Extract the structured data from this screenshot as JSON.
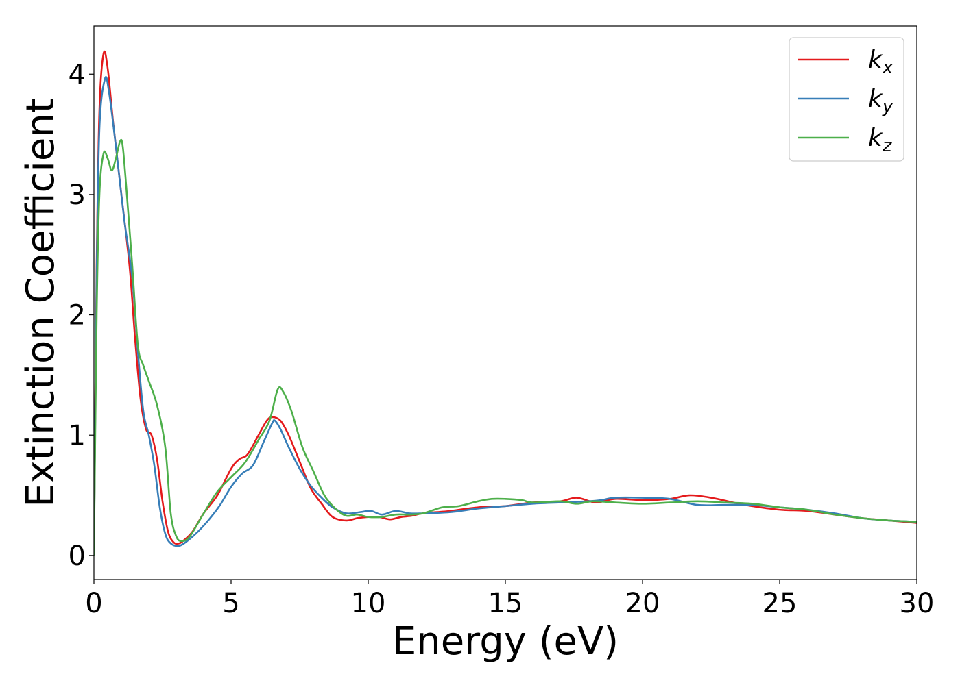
{
  "chart_data": {
    "type": "line",
    "xlabel": "Energy (eV)",
    "ylabel": "Extinction Coefficient",
    "xlim": [
      0,
      30
    ],
    "ylim": [
      -0.2,
      4.4
    ],
    "xticks": [
      0,
      5,
      10,
      15,
      20,
      25,
      30
    ],
    "xtick_labels": [
      "0",
      "5",
      "10",
      "15",
      "20",
      "25",
      "30"
    ],
    "yticks": [
      0,
      1,
      2,
      3,
      4
    ],
    "ytick_labels": [
      "0",
      "1",
      "2",
      "3",
      "4"
    ],
    "grid": false,
    "legend_position": "top-right",
    "series": [
      {
        "name": "k_x",
        "label_base": "k",
        "label_sub": "x",
        "color": "#e41a1c",
        "points": [
          [
            0,
            0
          ],
          [
            0.1,
            2.4
          ],
          [
            0.2,
            3.7
          ],
          [
            0.35,
            4.17
          ],
          [
            0.5,
            4.05
          ],
          [
            0.7,
            3.6
          ],
          [
            1.0,
            3.0
          ],
          [
            1.3,
            2.4
          ],
          [
            1.5,
            1.8
          ],
          [
            1.7,
            1.3
          ],
          [
            1.9,
            1.05
          ],
          [
            2.1,
            1.0
          ],
          [
            2.3,
            0.8
          ],
          [
            2.5,
            0.45
          ],
          [
            2.7,
            0.2
          ],
          [
            2.9,
            0.11
          ],
          [
            3.1,
            0.1
          ],
          [
            3.3,
            0.13
          ],
          [
            3.6,
            0.2
          ],
          [
            4.0,
            0.35
          ],
          [
            4.5,
            0.5
          ],
          [
            5.0,
            0.72
          ],
          [
            5.3,
            0.8
          ],
          [
            5.6,
            0.84
          ],
          [
            6.0,
            1.0
          ],
          [
            6.3,
            1.12
          ],
          [
            6.5,
            1.15
          ],
          [
            6.8,
            1.12
          ],
          [
            7.1,
            1.0
          ],
          [
            7.5,
            0.78
          ],
          [
            7.9,
            0.56
          ],
          [
            8.3,
            0.43
          ],
          [
            8.7,
            0.32
          ],
          [
            9.2,
            0.29
          ],
          [
            9.6,
            0.31
          ],
          [
            10.0,
            0.32
          ],
          [
            10.4,
            0.32
          ],
          [
            10.8,
            0.3
          ],
          [
            11.2,
            0.32
          ],
          [
            11.6,
            0.33
          ],
          [
            12.0,
            0.35
          ],
          [
            13.0,
            0.37
          ],
          [
            14.0,
            0.4
          ],
          [
            15.0,
            0.41
          ],
          [
            16.0,
            0.44
          ],
          [
            17.0,
            0.45
          ],
          [
            17.6,
            0.48
          ],
          [
            18.3,
            0.44
          ],
          [
            19.0,
            0.47
          ],
          [
            20.0,
            0.46
          ],
          [
            21.0,
            0.47
          ],
          [
            21.7,
            0.5
          ],
          [
            22.5,
            0.48
          ],
          [
            23.5,
            0.43
          ],
          [
            24.0,
            0.41
          ],
          [
            25.0,
            0.38
          ],
          [
            26.0,
            0.37
          ],
          [
            27.0,
            0.34
          ],
          [
            28.0,
            0.31
          ],
          [
            29.0,
            0.29
          ],
          [
            30.0,
            0.27
          ]
        ]
      },
      {
        "name": "k_y",
        "label_base": "k",
        "label_sub": "y",
        "color": "#377eb8",
        "points": [
          [
            0,
            0
          ],
          [
            0.1,
            2.3
          ],
          [
            0.2,
            3.55
          ],
          [
            0.4,
            3.96
          ],
          [
            0.55,
            3.85
          ],
          [
            0.8,
            3.4
          ],
          [
            1.1,
            2.8
          ],
          [
            1.4,
            2.3
          ],
          [
            1.6,
            1.7
          ],
          [
            1.8,
            1.2
          ],
          [
            2.0,
            1.0
          ],
          [
            2.2,
            0.75
          ],
          [
            2.4,
            0.4
          ],
          [
            2.6,
            0.18
          ],
          [
            2.8,
            0.1
          ],
          [
            3.1,
            0.08
          ],
          [
            3.4,
            0.12
          ],
          [
            3.8,
            0.2
          ],
          [
            4.2,
            0.3
          ],
          [
            4.6,
            0.42
          ],
          [
            5.0,
            0.57
          ],
          [
            5.4,
            0.68
          ],
          [
            5.8,
            0.75
          ],
          [
            6.2,
            0.95
          ],
          [
            6.5,
            1.1
          ],
          [
            6.6,
            1.12
          ],
          [
            6.8,
            1.05
          ],
          [
            7.1,
            0.9
          ],
          [
            7.5,
            0.72
          ],
          [
            7.9,
            0.58
          ],
          [
            8.3,
            0.48
          ],
          [
            8.7,
            0.4
          ],
          [
            9.2,
            0.35
          ],
          [
            9.7,
            0.36
          ],
          [
            10.1,
            0.37
          ],
          [
            10.5,
            0.34
          ],
          [
            11.0,
            0.37
          ],
          [
            11.5,
            0.35
          ],
          [
            12.0,
            0.35
          ],
          [
            13.0,
            0.36
          ],
          [
            14.0,
            0.39
          ],
          [
            15.0,
            0.41
          ],
          [
            16.0,
            0.43
          ],
          [
            17.0,
            0.44
          ],
          [
            18.0,
            0.45
          ],
          [
            18.5,
            0.46
          ],
          [
            19.0,
            0.48
          ],
          [
            20.0,
            0.48
          ],
          [
            21.0,
            0.47
          ],
          [
            22.0,
            0.42
          ],
          [
            23.0,
            0.42
          ],
          [
            24.0,
            0.42
          ],
          [
            25.0,
            0.4
          ],
          [
            26.0,
            0.38
          ],
          [
            27.0,
            0.35
          ],
          [
            28.0,
            0.31
          ],
          [
            29.0,
            0.29
          ],
          [
            30.0,
            0.28
          ]
        ]
      },
      {
        "name": "k_z",
        "label_base": "k",
        "label_sub": "z",
        "color": "#4daf4a",
        "points": [
          [
            0,
            0
          ],
          [
            0.1,
            2.0
          ],
          [
            0.2,
            3.0
          ],
          [
            0.35,
            3.34
          ],
          [
            0.5,
            3.3
          ],
          [
            0.65,
            3.2
          ],
          [
            0.8,
            3.3
          ],
          [
            0.95,
            3.44
          ],
          [
            1.05,
            3.4
          ],
          [
            1.2,
            3.0
          ],
          [
            1.4,
            2.4
          ],
          [
            1.6,
            1.75
          ],
          [
            1.8,
            1.58
          ],
          [
            2.0,
            1.45
          ],
          [
            2.3,
            1.25
          ],
          [
            2.6,
            0.9
          ],
          [
            2.8,
            0.35
          ],
          [
            3.0,
            0.16
          ],
          [
            3.2,
            0.12
          ],
          [
            3.5,
            0.16
          ],
          [
            4.0,
            0.35
          ],
          [
            4.5,
            0.53
          ],
          [
            5.0,
            0.65
          ],
          [
            5.5,
            0.77
          ],
          [
            6.0,
            0.96
          ],
          [
            6.4,
            1.12
          ],
          [
            6.7,
            1.38
          ],
          [
            6.9,
            1.36
          ],
          [
            7.2,
            1.2
          ],
          [
            7.6,
            0.9
          ],
          [
            8.0,
            0.7
          ],
          [
            8.4,
            0.5
          ],
          [
            8.8,
            0.39
          ],
          [
            9.2,
            0.33
          ],
          [
            9.6,
            0.34
          ],
          [
            10.0,
            0.32
          ],
          [
            10.5,
            0.32
          ],
          [
            11.0,
            0.34
          ],
          [
            11.5,
            0.34
          ],
          [
            12.0,
            0.35
          ],
          [
            12.7,
            0.4
          ],
          [
            13.3,
            0.41
          ],
          [
            14.0,
            0.45
          ],
          [
            14.5,
            0.47
          ],
          [
            15.0,
            0.47
          ],
          [
            15.6,
            0.46
          ],
          [
            16.0,
            0.44
          ],
          [
            17.0,
            0.45
          ],
          [
            17.6,
            0.43
          ],
          [
            18.2,
            0.45
          ],
          [
            19.0,
            0.44
          ],
          [
            20.0,
            0.43
          ],
          [
            21.0,
            0.44
          ],
          [
            22.0,
            0.45
          ],
          [
            23.0,
            0.44
          ],
          [
            24.0,
            0.43
          ],
          [
            25.0,
            0.4
          ],
          [
            26.0,
            0.38
          ],
          [
            27.0,
            0.34
          ],
          [
            28.0,
            0.31
          ],
          [
            29.0,
            0.29
          ],
          [
            30.0,
            0.28
          ]
        ]
      }
    ]
  }
}
